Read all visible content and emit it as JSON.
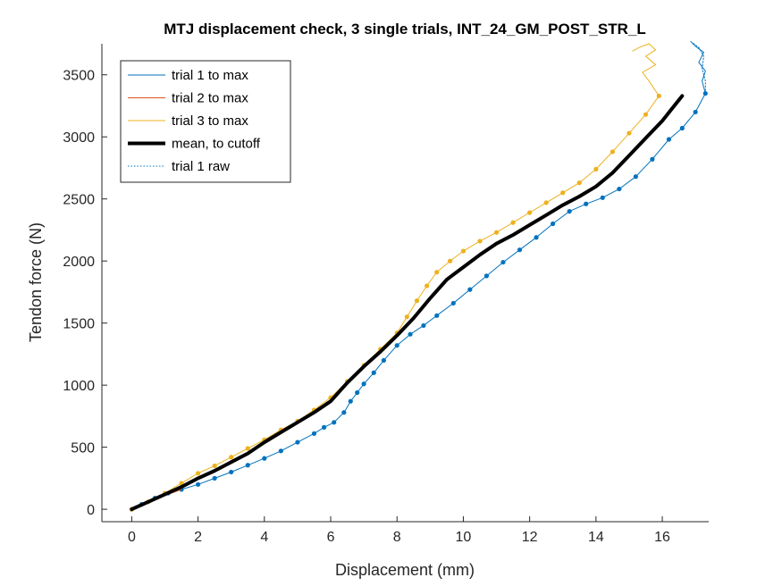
{
  "chart_data": {
    "type": "line",
    "title": "MTJ displacement check, 3 single trials, INT_24_GM_POST_STR_L",
    "xlabel": "Displacement (mm)",
    "ylabel": "Tendon force (N)",
    "xlim": [
      -0.9,
      17.4
    ],
    "ylim": [
      -100,
      3750
    ],
    "xticks": [
      0,
      2,
      4,
      6,
      8,
      10,
      12,
      14,
      16
    ],
    "yticks": [
      0,
      500,
      1000,
      1500,
      2000,
      2500,
      3000,
      3500
    ],
    "grid": false,
    "legend_position": "top-left",
    "colors": {
      "trial1": "#0072BD",
      "trial2": "#D95319",
      "trial3": "#EDB120",
      "mean": "#000000"
    },
    "series": [
      {
        "key": "trial1",
        "name": "trial 1 to max",
        "style": "solid-markers",
        "color": "#0072BD",
        "points": [
          [
            0,
            0
          ],
          [
            0.3,
            40
          ],
          [
            0.7,
            90
          ],
          [
            1.1,
            130
          ],
          [
            1.5,
            160
          ],
          [
            2,
            200
          ],
          [
            2.5,
            250
          ],
          [
            3,
            300
          ],
          [
            3.5,
            355
          ],
          [
            4,
            410
          ],
          [
            4.5,
            470
          ],
          [
            5,
            540
          ],
          [
            5.5,
            610
          ],
          [
            5.8,
            660
          ],
          [
            6.1,
            700
          ],
          [
            6.4,
            780
          ],
          [
            6.6,
            870
          ],
          [
            6.8,
            940
          ],
          [
            7,
            1010
          ],
          [
            7.3,
            1100
          ],
          [
            7.6,
            1200
          ],
          [
            8,
            1320
          ],
          [
            8.4,
            1410
          ],
          [
            8.8,
            1480
          ],
          [
            9.2,
            1560
          ],
          [
            9.7,
            1660
          ],
          [
            10.2,
            1770
          ],
          [
            10.7,
            1880
          ],
          [
            11.2,
            1990
          ],
          [
            11.7,
            2090
          ],
          [
            12.2,
            2190
          ],
          [
            12.7,
            2300
          ],
          [
            13.2,
            2400
          ],
          [
            13.7,
            2460
          ],
          [
            14.2,
            2510
          ],
          [
            14.7,
            2580
          ],
          [
            15.2,
            2680
          ],
          [
            15.7,
            2820
          ],
          [
            16.2,
            2980
          ],
          [
            16.6,
            3070
          ],
          [
            17,
            3200
          ],
          [
            17.3,
            3350
          ]
        ]
      },
      {
        "key": "trial2",
        "name": "trial 2 to max",
        "style": "solid",
        "color": "#D95319",
        "points": [
          [
            0,
            0
          ],
          [
            0.5,
            55
          ],
          [
            1,
            110
          ],
          [
            1.5,
            160
          ]
        ]
      },
      {
        "key": "trial3",
        "name": "trial 3 to max",
        "style": "solid-markers",
        "color": "#EDB120",
        "points": [
          [
            0,
            0
          ],
          [
            0.5,
            60
          ],
          [
            1,
            130
          ],
          [
            1.5,
            210
          ],
          [
            2,
            290
          ],
          [
            2.5,
            350
          ],
          [
            3,
            420
          ],
          [
            3.5,
            490
          ],
          [
            4,
            560
          ],
          [
            4.5,
            640
          ],
          [
            5,
            710
          ],
          [
            5.5,
            800
          ],
          [
            6,
            900
          ],
          [
            6.5,
            1030
          ],
          [
            7,
            1160
          ],
          [
            7.5,
            1290
          ],
          [
            8,
            1420
          ],
          [
            8.3,
            1550
          ],
          [
            8.6,
            1680
          ],
          [
            8.9,
            1800
          ],
          [
            9.2,
            1910
          ],
          [
            9.6,
            2000
          ],
          [
            10,
            2080
          ],
          [
            10.5,
            2160
          ],
          [
            11,
            2230
          ],
          [
            11.5,
            2310
          ],
          [
            12,
            2390
          ],
          [
            12.5,
            2470
          ],
          [
            13,
            2550
          ],
          [
            13.5,
            2630
          ],
          [
            14,
            2740
          ],
          [
            14.5,
            2880
          ],
          [
            15,
            3030
          ],
          [
            15.5,
            3180
          ],
          [
            15.9,
            3330
          ]
        ]
      },
      {
        "key": "mean",
        "name": "mean, to cutoff",
        "style": "thick",
        "color": "#000000",
        "points": [
          [
            0,
            0
          ],
          [
            0.5,
            60
          ],
          [
            1,
            120
          ],
          [
            1.5,
            180
          ],
          [
            2,
            250
          ],
          [
            2.5,
            310
          ],
          [
            3,
            380
          ],
          [
            3.5,
            450
          ],
          [
            4,
            540
          ],
          [
            4.5,
            620
          ],
          [
            5,
            700
          ],
          [
            5.5,
            780
          ],
          [
            6,
            870
          ],
          [
            6.5,
            1020
          ],
          [
            7,
            1150
          ],
          [
            7.5,
            1270
          ],
          [
            8,
            1400
          ],
          [
            8.5,
            1540
          ],
          [
            9,
            1700
          ],
          [
            9.5,
            1850
          ],
          [
            10,
            1950
          ],
          [
            10.5,
            2050
          ],
          [
            11,
            2140
          ],
          [
            11.5,
            2210
          ],
          [
            12,
            2290
          ],
          [
            12.5,
            2370
          ],
          [
            13,
            2450
          ],
          [
            13.5,
            2520
          ],
          [
            14,
            2600
          ],
          [
            14.5,
            2710
          ],
          [
            15,
            2850
          ],
          [
            15.5,
            2990
          ],
          [
            16,
            3130
          ],
          [
            16.3,
            3230
          ],
          [
            16.6,
            3330
          ]
        ]
      },
      {
        "key": "trial1raw",
        "name": "trial 1 raw",
        "style": "dotted",
        "color": "#0072BD",
        "points": [
          [
            17.3,
            3350
          ],
          [
            17.3,
            3450
          ],
          [
            17.2,
            3550
          ],
          [
            17.25,
            3650
          ],
          [
            17.1,
            3720
          ],
          [
            16.9,
            3760
          ]
        ]
      }
    ],
    "tails": [
      {
        "key": "trial1-tail",
        "color": "#0072BD",
        "style": "solid",
        "points": [
          [
            17.3,
            3350
          ],
          [
            17.2,
            3450
          ],
          [
            17.3,
            3530
          ],
          [
            17.1,
            3600
          ],
          [
            17.25,
            3680
          ],
          [
            17,
            3730
          ],
          [
            16.85,
            3770
          ]
        ]
      },
      {
        "key": "trial3-tail",
        "color": "#EDB120",
        "style": "solid",
        "points": [
          [
            15.9,
            3330
          ],
          [
            15.6,
            3450
          ],
          [
            15.4,
            3520
          ],
          [
            15.8,
            3580
          ],
          [
            15.5,
            3650
          ],
          [
            15.8,
            3700
          ],
          [
            15.6,
            3750
          ],
          [
            15.3,
            3720
          ],
          [
            15.1,
            3690
          ]
        ]
      }
    ]
  }
}
